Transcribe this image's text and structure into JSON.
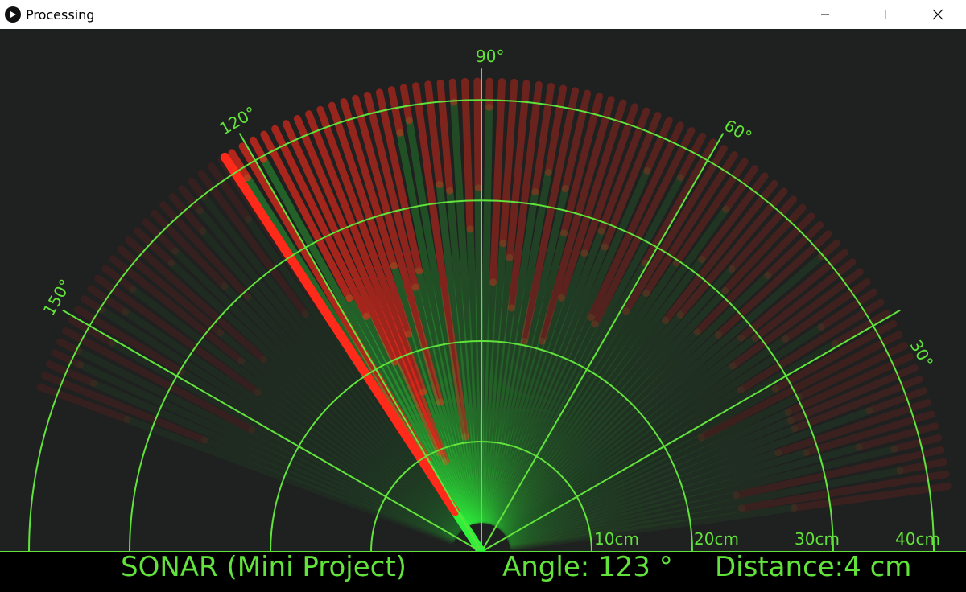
{
  "window": {
    "title": "Processing",
    "icons": [
      "play-icon",
      "minimize-icon",
      "maximize-icon",
      "close-icon"
    ]
  },
  "radar": {
    "angle_labels": [
      "30°",
      "60°",
      "90°",
      "120°",
      "150°"
    ],
    "range_labels": [
      "10cm",
      "20cm",
      "30cm",
      "40cm"
    ],
    "colors": {
      "grid": "#61e33b",
      "sweep": "#2ef03a",
      "object": "#ff2a1a",
      "background": "#1f2020",
      "footer": "#000000"
    }
  },
  "status": {
    "title": "SONAR (Mini Project)",
    "angle_label": "Angle:",
    "angle_value": "123",
    "angle_unit": "°",
    "distance_label": "Distance:",
    "distance_value": "4",
    "distance_unit": "cm"
  }
}
